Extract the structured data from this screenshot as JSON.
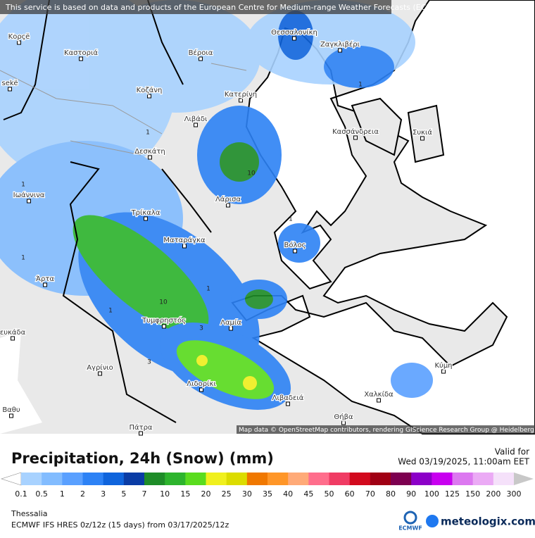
{
  "banner": "This service is based on data and products of the European Centre for Medium-range Weather Forecasts (ECMWF)",
  "attribution": "Map data © OpenStreetMap contributors, rendering GIScience Research Group @ Heidelberg University",
  "places": [
    "Κορçë",
    "Καστοριά",
    "Βέροια",
    "Θεσσαλονίκη",
    "Ζαγκλιβέρι",
    "sekë",
    "Κοζάνη",
    "Κατερίνη",
    "Λιβάδι",
    "Κασσάνδρεια",
    "Συκιά",
    "Δεσκάτη",
    "Ιωάννινα",
    "Λάρισα",
    "Τρίκαλα",
    "Ματαράγκα",
    "Βόλος",
    "Άρτα",
    "Τυμφρηστός",
    "Λαμία",
    "ευκάδα",
    "Αγρίνιο",
    "Κύμη",
    "Λιδορίκι",
    "Λιβαδειά",
    "Χαλκίδα",
    "Θήβα",
    "Βαθυ",
    "Πάτρα"
  ],
  "contour_labels": [
    1,
    1,
    1,
    1,
    1,
    1,
    1,
    10,
    10,
    3,
    3
  ],
  "legend": {
    "title": "Precipitation, 24h (Snow) (mm)",
    "valid_label": "Valid for",
    "valid_time": "Wed 03/19/2025, 11:00am EET",
    "labels": [
      0.1,
      0.5,
      1,
      2,
      3,
      5,
      7,
      10,
      15,
      20,
      25,
      30,
      35,
      40,
      45,
      50,
      60,
      70,
      80,
      90,
      100,
      125,
      150,
      200,
      300
    ],
    "colors": [
      "#ffffff",
      "#a8d2ff",
      "#82bcff",
      "#5aa0ff",
      "#2d82f5",
      "#0f64dc",
      "#0a3ca5",
      "#1e8c28",
      "#2db42d",
      "#5adc1e",
      "#f0f01e",
      "#dcdc00",
      "#f07800",
      "#ff9628",
      "#ffaa78",
      "#ff6e8c",
      "#f03c64",
      "#d20a1e",
      "#a00014",
      "#7d0050",
      "#8c00c8",
      "#c800f0",
      "#dc78f0",
      "#ebaaf5",
      "#f5e1fa",
      "#c8c8c8"
    ]
  },
  "region": "Thessalia",
  "model": "ECMWF IFS HRES 0z/12z (15 days) from  03/17/2025/12z",
  "logos": [
    "ECMWF",
    "meteologix.com"
  ]
}
